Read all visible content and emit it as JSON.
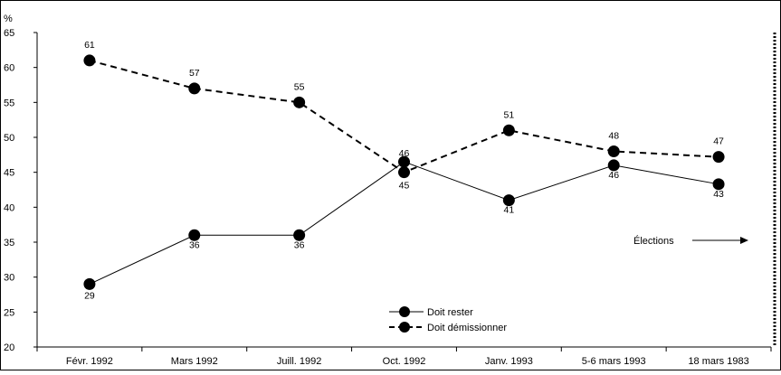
{
  "chart_data": {
    "type": "line",
    "ylabel": "%",
    "ylim": [
      20,
      65
    ],
    "yticks": [
      20,
      25,
      30,
      35,
      40,
      45,
      50,
      55,
      60,
      65
    ],
    "categories": [
      "Févr. 1992",
      "Mars 1992",
      "Juill. 1992",
      "Oct. 1992",
      "Janv. 1993",
      "5-6 mars 1993",
      "18 mars 1983"
    ],
    "series": [
      {
        "name": "Doit rester",
        "style": "solid",
        "values": [
          29,
          36,
          36,
          46.5,
          41,
          46,
          43.3
        ],
        "labels": [
          "29",
          "36",
          "36",
          "46",
          "41",
          "46",
          "43"
        ]
      },
      {
        "name": "Doit démissionner",
        "style": "dashed",
        "values": [
          61,
          57,
          55,
          45,
          51,
          48,
          47.2
        ],
        "labels": [
          "61",
          "57",
          "55",
          "45",
          "51",
          "48",
          "47"
        ]
      }
    ],
    "annotation": "Élections",
    "legend_position": "bottom-center",
    "grid": false
  }
}
